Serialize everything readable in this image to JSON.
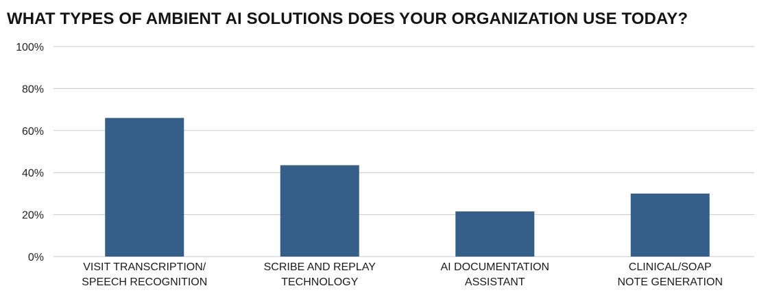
{
  "chart_data": {
    "type": "bar",
    "title": "WHAT TYPES OF AMBIENT AI SOLUTIONS DOES YOUR ORGANIZATION USE TODAY?",
    "xlabel": "",
    "ylabel": "",
    "categories": [
      "VISIT TRANSCRIPTION/\nSPEECH RECOGNITION",
      "SCRIBE AND REPLAY\nTECHNOLOGY",
      "AI DOCUMENTATION\nASSISTANT",
      "CLINICAL/SOAP\nNOTE GENERATION"
    ],
    "values": [
      66,
      43.5,
      21.5,
      30
    ],
    "ylim": [
      0,
      100
    ],
    "yticks": [
      "0%",
      "20%",
      "40%",
      "60%",
      "80%",
      "100%"
    ],
    "ytick_values": [
      0,
      20,
      40,
      60,
      80,
      100
    ],
    "grid": true,
    "legend": "none",
    "bar_color": "#355e88",
    "grid_color": "#c8c8c8"
  }
}
